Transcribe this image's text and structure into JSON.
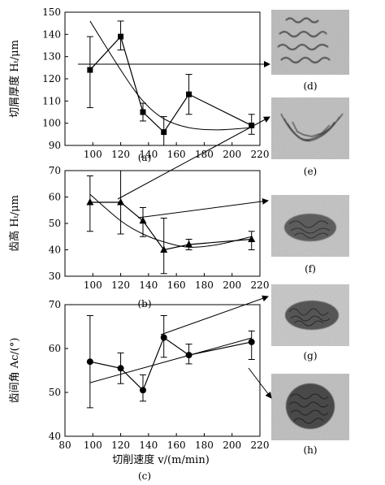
{
  "chart_data": [
    {
      "type": "line",
      "panel_label": "(a)",
      "ylabel": "切屑厚度 Hₜ/μm",
      "xlabel": "",
      "xlim": [
        80,
        220
      ],
      "ylim": [
        90,
        150
      ],
      "xticks": [
        100,
        120,
        140,
        160,
        180,
        200,
        220
      ],
      "yticks": [
        90,
        100,
        110,
        120,
        130,
        140,
        150
      ],
      "marker": "square",
      "series": [
        {
          "x": [
            98,
            120,
            136,
            151,
            169,
            214
          ],
          "y": [
            124,
            139,
            105,
            96,
            113,
            99
          ],
          "yerr_low": [
            107,
            133,
            101,
            90,
            104,
            95
          ],
          "yerr_high": [
            139,
            146,
            109,
            103,
            122,
            104
          ]
        }
      ],
      "trend": {
        "x": [
          98,
          120,
          136,
          151,
          169,
          190,
          214
        ],
        "y": [
          146,
          124,
          110,
          102,
          98,
          97,
          98
        ]
      }
    },
    {
      "type": "line",
      "panel_label": "(b)",
      "ylabel": "齿高 Hₜ/μm",
      "xlabel": "",
      "xlim": [
        80,
        220
      ],
      "ylim": [
        30,
        70
      ],
      "xticks": [
        100,
        120,
        140,
        160,
        180,
        200,
        220
      ],
      "yticks": [
        30,
        40,
        50,
        60,
        70
      ],
      "marker": "triangle",
      "series": [
        {
          "x": [
            98,
            120,
            136,
            151,
            169,
            214
          ],
          "y": [
            58,
            58,
            51,
            40,
            42,
            44
          ],
          "yerr_low": [
            47,
            46,
            45,
            31,
            40,
            40
          ],
          "yerr_high": [
            68,
            70,
            56,
            52,
            44,
            47
          ]
        }
      ],
      "trend": {
        "x": [
          98,
          120,
          136,
          151,
          169,
          190,
          214
        ],
        "y": [
          61,
          51,
          46,
          43,
          41,
          42,
          45
        ]
      }
    },
    {
      "type": "line",
      "panel_label": "(c)",
      "ylabel": "齿间角 Ac/(°)",
      "xlabel": "切削速度 v/(m/min)",
      "xlim": [
        80,
        220
      ],
      "ylim": [
        40,
        70
      ],
      "xticks": [
        80,
        100,
        120,
        140,
        160,
        180,
        200,
        220
      ],
      "yticks": [
        40,
        50,
        60,
        70
      ],
      "marker": "circle",
      "series": [
        {
          "x": [
            98,
            120,
            136,
            151,
            169,
            214
          ],
          "y": [
            57,
            55.5,
            50.5,
            62.5,
            58.5,
            61.5
          ],
          "yerr_low": [
            46.5,
            52,
            48,
            58,
            56.5,
            57.5
          ],
          "yerr_high": [
            67.5,
            59,
            54,
            67.5,
            61,
            64
          ]
        }
      ],
      "trend": {
        "x": [
          98,
          214
        ],
        "y": [
          52.2,
          62.4
        ]
      }
    }
  ],
  "images": [
    {
      "label": "(d)"
    },
    {
      "label": "(e)"
    },
    {
      "label": "(f)"
    },
    {
      "label": "(g)"
    },
    {
      "label": "(h)"
    }
  ]
}
